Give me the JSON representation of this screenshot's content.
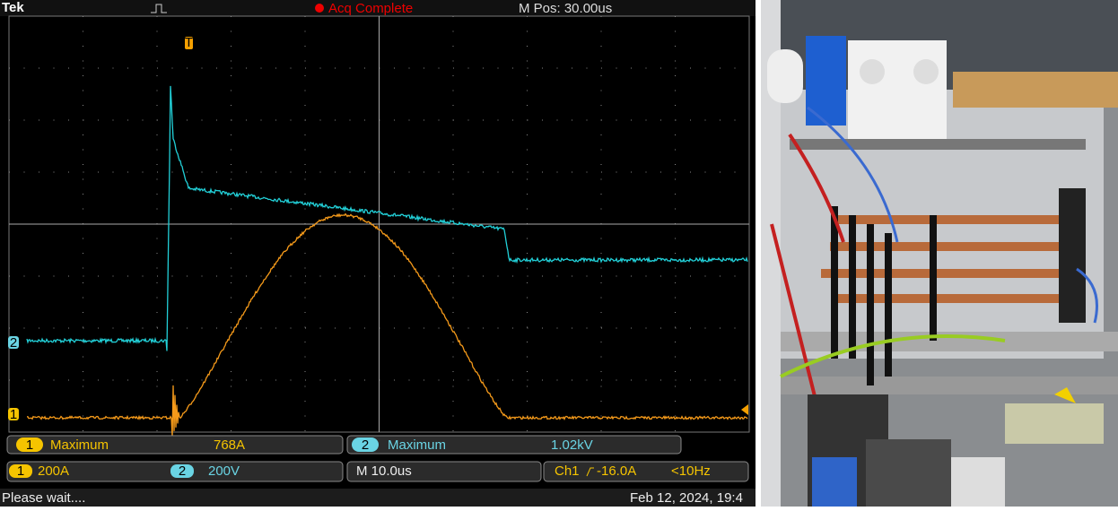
{
  "header": {
    "brand": "Tek",
    "status": "Acq Complete",
    "position": "M Pos: 30.00us"
  },
  "trigger_marker": "T",
  "channel_markers": [
    "2",
    "1"
  ],
  "measurements": [
    {
      "channel": "1",
      "label": "Maximum",
      "value": "768A"
    },
    {
      "channel": "2",
      "label": "Maximum",
      "value": "1.02kV"
    }
  ],
  "scales": [
    {
      "channel": "1",
      "value": "200A"
    },
    {
      "channel": "2",
      "value": "200V"
    }
  ],
  "timebase": "M 10.0us",
  "trigger": {
    "source": "Ch1",
    "level": "-16.0A",
    "frequency": "<10Hz"
  },
  "footer": {
    "message": "Please wait....",
    "datetime": "Feb 12, 2024, 19:4"
  }
}
